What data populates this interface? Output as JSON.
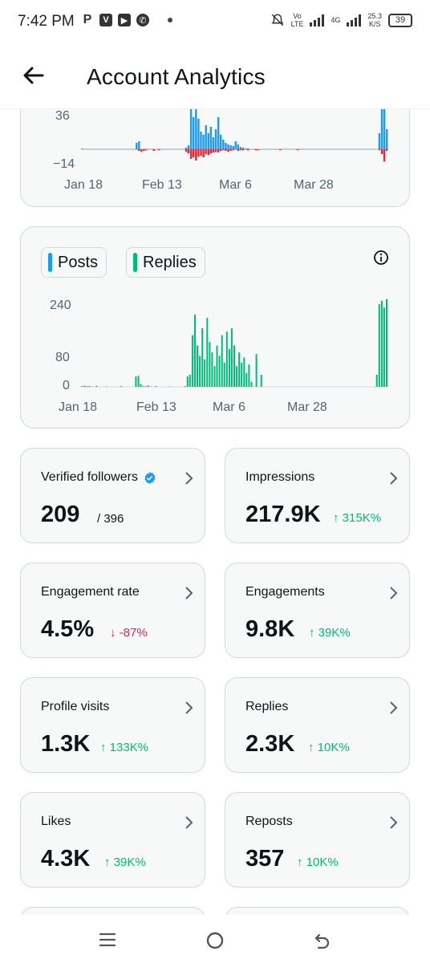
{
  "status_bar": {
    "time": "7:42 PM",
    "apps": [
      "P",
      "V",
      "▶",
      "✆"
    ],
    "network_1": "Vo",
    "network_1b": "LTE",
    "network_2": "4G",
    "speed": "25.3",
    "speed_unit": "K/S",
    "battery": "39"
  },
  "header": {
    "title": "Account Analytics"
  },
  "chart_top": {
    "y_ticks": [
      "36",
      "−14"
    ],
    "x_ticks": [
      "Jan 18",
      "Feb 13",
      "Mar 6",
      "Mar 28"
    ]
  },
  "chart_data": [
    {
      "type": "bar",
      "description_visible": "net follower change, positive blue, negative red (partially scrolled)",
      "y_ticks": [
        "36",
        "−14"
      ],
      "x_ticks": [
        "Jan 18",
        "Feb 13",
        "Mar 6",
        "Mar 28"
      ],
      "series": [
        {
          "name": "",
          "color": "#1d9bf0",
          "values": [
            1,
            0,
            0,
            0,
            0,
            0,
            0,
            0,
            0,
            0,
            0,
            0,
            0,
            0,
            0,
            0,
            0,
            0,
            0,
            0,
            0,
            0,
            8,
            10,
            0,
            0,
            0,
            0,
            0,
            0,
            0,
            0,
            0,
            0,
            0,
            0,
            0,
            0,
            0,
            0,
            0,
            0,
            2,
            5,
            60,
            40,
            55,
            38,
            22,
            18,
            30,
            20,
            28,
            15,
            25,
            40,
            18,
            12,
            8,
            6,
            5,
            4,
            10,
            6,
            3,
            2,
            1,
            1,
            0,
            0,
            0,
            0,
            0,
            0,
            0,
            0,
            0,
            0,
            0,
            0,
            0,
            0,
            0,
            0,
            0,
            0,
            0,
            0,
            0,
            0,
            0,
            0,
            0,
            0,
            0,
            0,
            0,
            0,
            0,
            0,
            0,
            0,
            0,
            0,
            0,
            0,
            0,
            0,
            0,
            0,
            0,
            0,
            0,
            0,
            0,
            0,
            0,
            0,
            0,
            0,
            20,
            50,
            60,
            25
          ]
        },
        {
          "name": "",
          "color": "#f4212e",
          "values": [
            0,
            0,
            0,
            0,
            0,
            0,
            0,
            0,
            0,
            0,
            0,
            0,
            0,
            0,
            0,
            0,
            0,
            0,
            0,
            0,
            0,
            0,
            0,
            -2,
            -3,
            -2,
            -1,
            0,
            0,
            -2,
            0,
            -1,
            0,
            0,
            0,
            0,
            0,
            0,
            0,
            0,
            0,
            0,
            -3,
            -5,
            -12,
            -10,
            -14,
            -9,
            -8,
            -10,
            -6,
            -7,
            -5,
            -4,
            -3,
            -4,
            -2,
            -1,
            -2,
            -3,
            -2,
            -1,
            0,
            -2,
            -1,
            -1,
            0,
            -1,
            0,
            0,
            -1,
            -1,
            0,
            0,
            0,
            0,
            0,
            0,
            0,
            0,
            -1,
            0,
            0,
            0,
            0,
            0,
            0,
            -1,
            0,
            0,
            0,
            0,
            0,
            0,
            0,
            0,
            0,
            0,
            0,
            0,
            0,
            0,
            0,
            0,
            0,
            0,
            0,
            0,
            0,
            0,
            0,
            0,
            0,
            0,
            0,
            0,
            0,
            0,
            0,
            0,
            -1,
            -6,
            -15,
            -2
          ]
        }
      ]
    },
    {
      "type": "bar",
      "legend": [
        "Posts",
        "Replies"
      ],
      "y_ticks": [
        "240",
        "80",
        "0"
      ],
      "x_ticks": [
        "Jan 18",
        "Feb 13",
        "Mar 6",
        "Mar 28"
      ],
      "ylim": [
        0,
        260
      ],
      "series": [
        {
          "name": "Posts",
          "color": "#1d9bf0",
          "values": []
        },
        {
          "name": "Replies",
          "color": "#00ba7c",
          "values": [
            2,
            3,
            2,
            2,
            1,
            0,
            3,
            0,
            0,
            0,
            1,
            0,
            0,
            0,
            0,
            0,
            2,
            0,
            0,
            0,
            0,
            0,
            30,
            32,
            8,
            2,
            2,
            4,
            1,
            0,
            2,
            0,
            0,
            0,
            0,
            0,
            1,
            0,
            0,
            0,
            0,
            0,
            2,
            30,
            35,
            150,
            210,
            120,
            90,
            170,
            80,
            200,
            130,
            100,
            60,
            120,
            90,
            150,
            70,
            160,
            110,
            170,
            120,
            60,
            100,
            70,
            85,
            40,
            65,
            15,
            0,
            95,
            0,
            35,
            0,
            0,
            0,
            0,
            0,
            0,
            0,
            0,
            0,
            0,
            0,
            0,
            0,
            0,
            0,
            0,
            0,
            0,
            0,
            0,
            0,
            0,
            0,
            0,
            0,
            0,
            0,
            0,
            0,
            0,
            0,
            0,
            0,
            0,
            0,
            0,
            0,
            0,
            0,
            0,
            0,
            0,
            0,
            0,
            0,
            0,
            35,
            240,
            250,
            230,
            255
          ]
        }
      ]
    }
  ],
  "legend": {
    "posts": "Posts",
    "replies": "Replies",
    "posts_color": "#1d9bf0",
    "replies_color": "#00ba7c"
  },
  "chart_bottom": {
    "y_ticks": [
      "240",
      "80",
      "0"
    ],
    "x_ticks": [
      "Jan 18",
      "Feb 13",
      "Mar 6",
      "Mar 28"
    ]
  },
  "stats": {
    "verified_followers": {
      "label": "Verified followers",
      "value": "209",
      "sub": "/ 396"
    },
    "impressions": {
      "label": "Impressions",
      "value": "217.9K",
      "change": "↑ 315K%"
    },
    "engagement_rate": {
      "label": "Engagement rate",
      "value": "4.5%",
      "change": "↓ -87%"
    },
    "engagements": {
      "label": "Engagements",
      "value": "9.8K",
      "change": "↑ 39K%"
    },
    "profile_visits": {
      "label": "Profile visits",
      "value": "1.3K",
      "change": "↑ 133K%"
    },
    "replies": {
      "label": "Replies",
      "value": "2.3K",
      "change": "↑ 10K%"
    },
    "likes": {
      "label": "Likes",
      "value": "4.3K",
      "change": "↑ 39K%"
    },
    "reposts": {
      "label": "Reposts",
      "value": "357",
      "change": "↑ 10K%"
    }
  },
  "nav": {
    "recents_icon": "menu-icon",
    "home_icon": "home-circle-icon",
    "back_icon": "back-arrow-icon"
  }
}
